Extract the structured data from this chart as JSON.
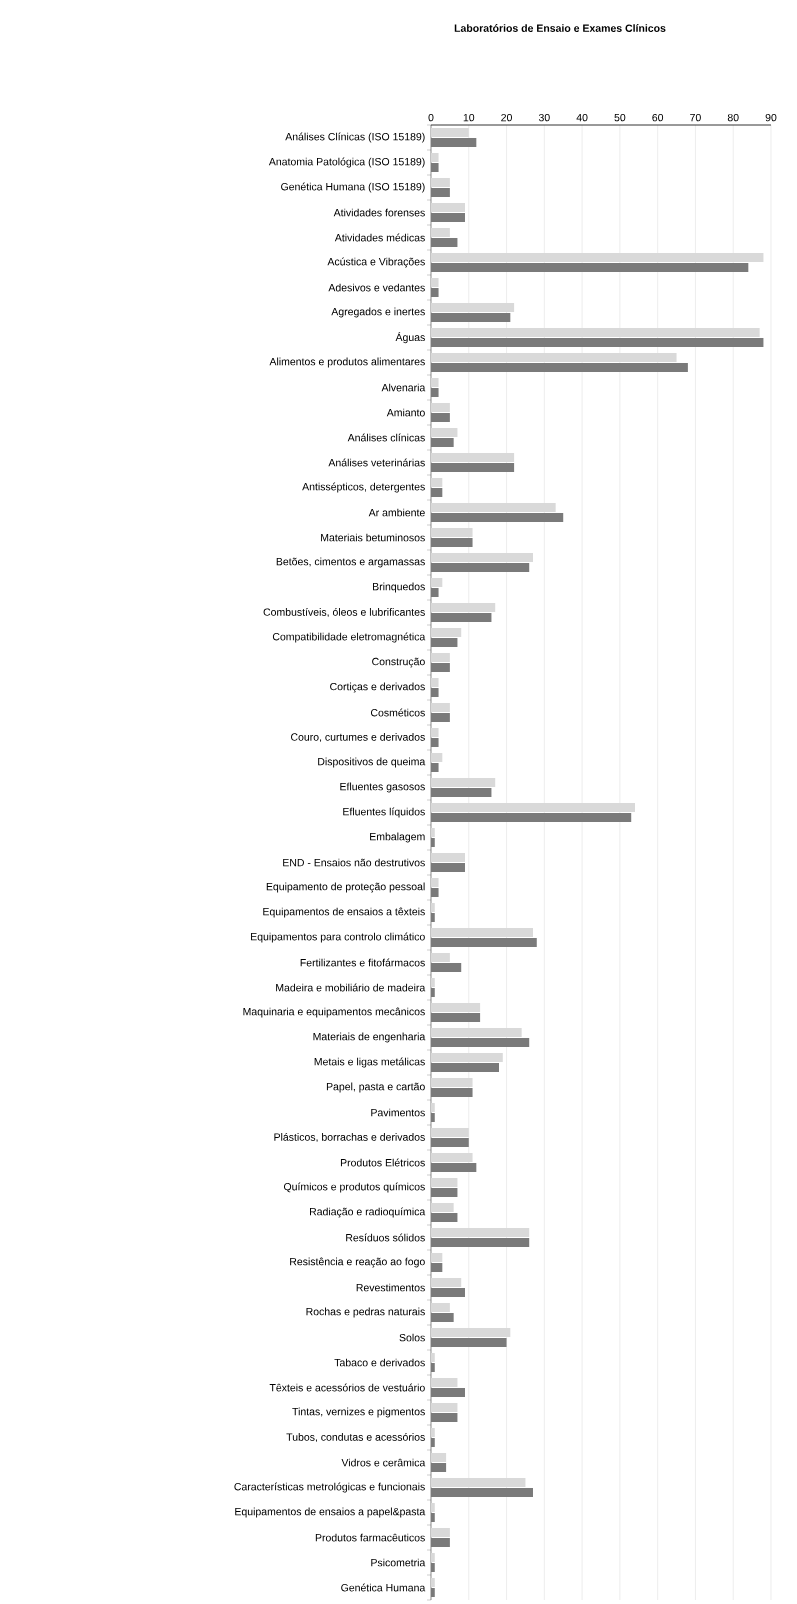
{
  "chart_data": {
    "type": "bar",
    "orientation": "horizontal",
    "title": "Laboratórios de Ensaio e Exames Clínicos",
    "categories": [
      "Análises Clínicas (ISO 15189)",
      "Anatomia Patológica (ISO 15189)",
      "Genética Humana (ISO 15189)",
      "Atividades forenses",
      "Atividades médicas",
      "Acústica e Vibrações",
      "Adesivos e vedantes",
      "Agregados e inertes",
      "Águas",
      "Alimentos e produtos alimentares",
      "Alvenaria",
      "Amianto",
      "Análises clínicas",
      "Análises veterinárias",
      "Antissépticos, detergentes",
      "Ar ambiente",
      "Materiais betuminosos",
      "Betões, cimentos e argamassas",
      "Brinquedos",
      "Combustíveis, óleos e lubrificantes",
      "Compatibilidade eletromagnética",
      "Construção",
      "Cortiças e derivados",
      "Cosméticos",
      "Couro, curtumes e derivados",
      "Dispositivos de queima",
      "Efluentes gasosos",
      "Efluentes líquidos",
      "Embalagem",
      "END - Ensaios não destrutivos",
      "Equipamento de proteção pessoal",
      "Equipamentos de ensaios a têxteis",
      "Equipamentos para controlo climático",
      "Fertilizantes e fitofármacos",
      "Madeira e mobiliário de madeira",
      "Maquinaria e equipamentos mecânicos",
      "Materiais de engenharia",
      "Metais e ligas metálicas",
      "Papel, pasta e cartão",
      "Pavimentos",
      "Plásticos, borrachas e derivados",
      "Produtos Elétricos",
      "Químicos e produtos químicos",
      "Radiação e radioquímica",
      "Resíduos sólidos",
      "Resistência e reação ao fogo",
      "Revestimentos",
      "Rochas e pedras naturais",
      "Solos",
      "Tabaco e derivados",
      "Têxteis e acessórios de vestuário",
      "Tintas, vernizes e pigmentos",
      "Tubos, condutas e acessórios",
      "Vidros e cerâmica",
      "Características metrológicas e funcionais",
      "Equipamentos de ensaios a papel&pasta",
      "Produtos farmacêuticos",
      "Psicometria",
      "Genética Humana"
    ],
    "series": [
      {
        "color": "#7a7a7a",
        "values": [
          12,
          2,
          5,
          9,
          7,
          84,
          2,
          21,
          88,
          68,
          2,
          5,
          6,
          22,
          3,
          35,
          11,
          26,
          2,
          16,
          7,
          5,
          2,
          5,
          2,
          2,
          16,
          53,
          1,
          9,
          2,
          1,
          28,
          8,
          1,
          13,
          26,
          18,
          11,
          1,
          10,
          12,
          7,
          7,
          26,
          3,
          9,
          6,
          20,
          1,
          9,
          7,
          1,
          4,
          27,
          1,
          5,
          1,
          1
        ]
      },
      {
        "color": "#d9d9d9",
        "values": [
          10,
          2,
          5,
          9,
          5,
          88,
          2,
          22,
          87,
          65,
          2,
          5,
          7,
          22,
          3,
          33,
          11,
          27,
          3,
          17,
          8,
          5,
          2,
          5,
          2,
          3,
          17,
          54,
          1,
          9,
          2,
          1,
          27,
          5,
          1,
          13,
          24,
          19,
          11,
          1,
          10,
          11,
          7,
          6,
          26,
          3,
          8,
          5,
          21,
          1,
          7,
          7,
          1,
          4,
          25,
          1,
          5,
          1,
          1
        ]
      }
    ],
    "xlim": [
      0,
      90
    ],
    "xticks": [
      0,
      10,
      20,
      30,
      40,
      50,
      60,
      70,
      80,
      90
    ],
    "grid": "x"
  }
}
